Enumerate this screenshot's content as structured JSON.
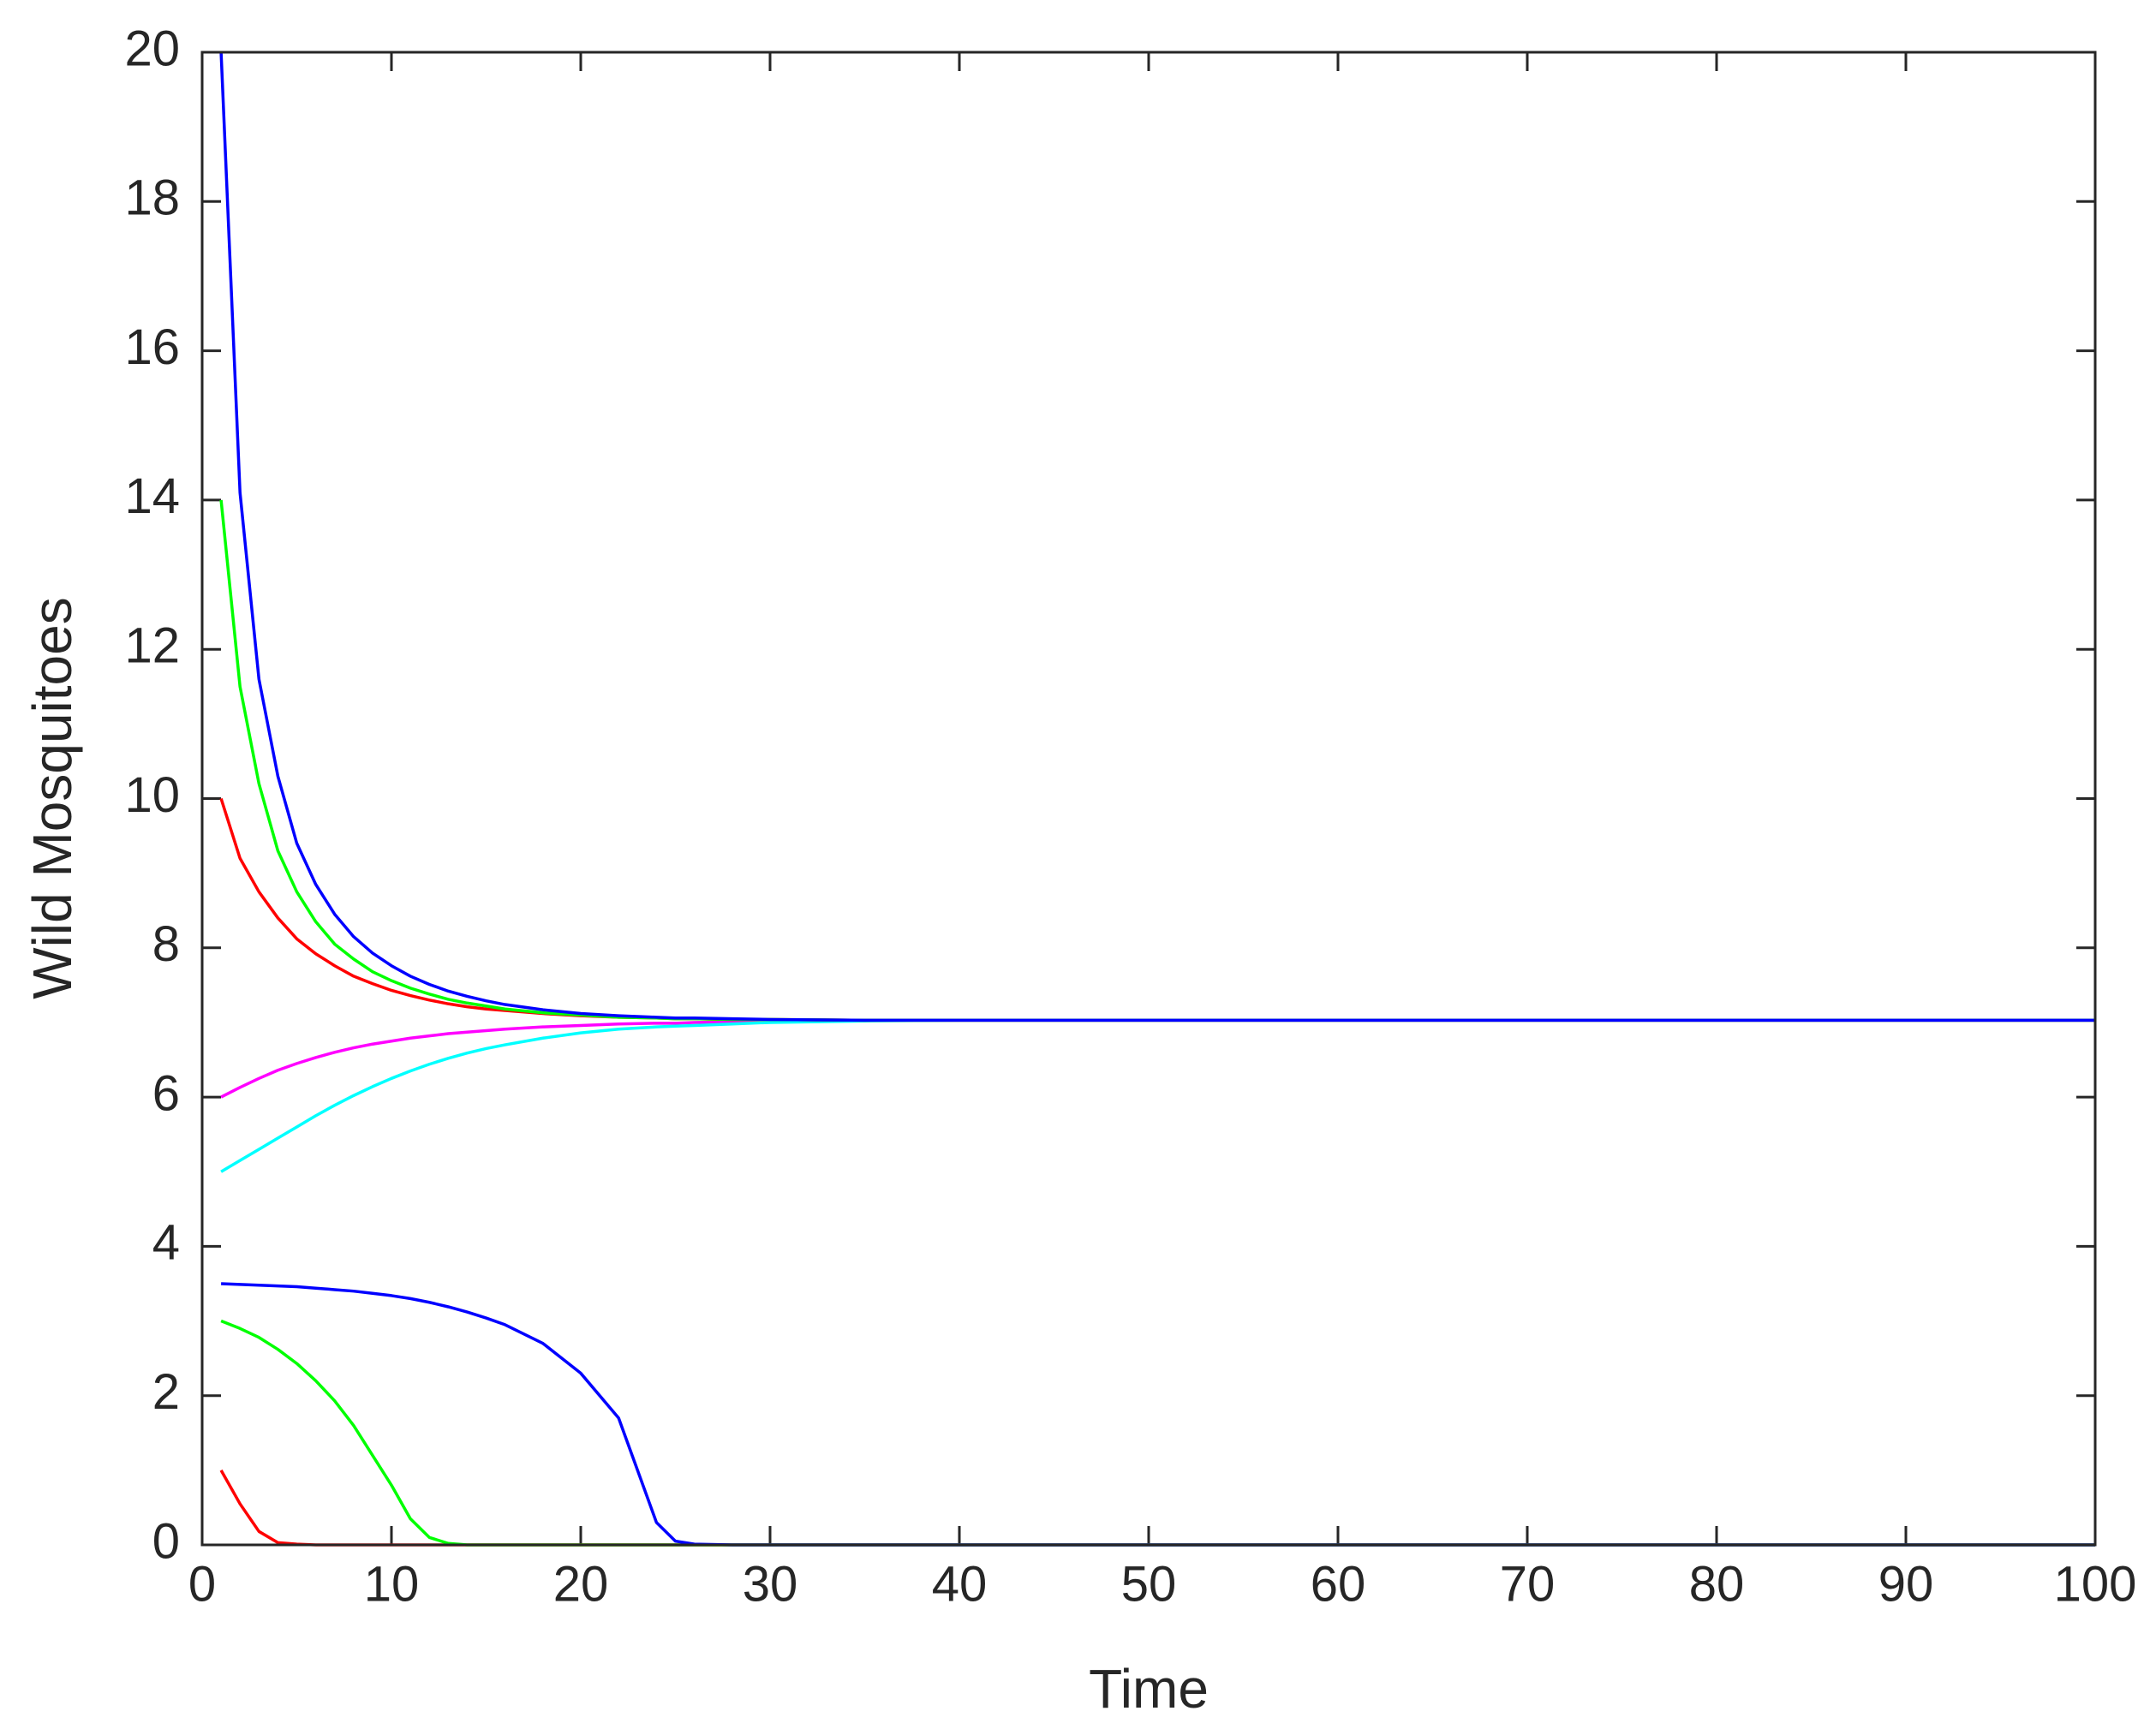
{
  "chart_data": {
    "type": "line",
    "x_label": "Time",
    "y_label": "Wild Mosquitoes",
    "xlim": [
      0,
      100
    ],
    "ylim": [
      0,
      20
    ],
    "xticks": [
      0,
      10,
      20,
      30,
      40,
      50,
      60,
      70,
      80,
      90,
      100
    ],
    "yticks": [
      0,
      2,
      4,
      6,
      8,
      10,
      12,
      14,
      16,
      18,
      20
    ],
    "grid": false,
    "x": [
      1,
      2,
      3,
      4,
      5,
      6,
      7,
      8,
      9,
      10,
      11,
      12,
      13,
      14,
      15,
      16,
      18,
      20,
      22,
      24,
      25,
      26,
      28,
      30,
      35,
      40,
      50,
      60,
      70,
      80,
      90,
      100
    ],
    "series": [
      {
        "color": "#ff00ff",
        "values": [
          6,
          6.13,
          6.25,
          6.36,
          6.45,
          6.53,
          6.6,
          6.66,
          6.71,
          6.75,
          6.79,
          6.82,
          6.85,
          6.87,
          6.89,
          6.91,
          6.94,
          6.96,
          6.98,
          6.99,
          6.99,
          7.0,
          7.01,
          7.02,
          7.03,
          7.03,
          7.03,
          7.03,
          7.03,
          7.03,
          7.03,
          7.03
        ]
      },
      {
        "color": "#00ffff",
        "values": [
          5,
          5.15,
          5.3,
          5.45,
          5.6,
          5.75,
          5.89,
          6.02,
          6.14,
          6.25,
          6.35,
          6.44,
          6.52,
          6.59,
          6.65,
          6.7,
          6.79,
          6.86,
          6.91,
          6.94,
          6.95,
          6.96,
          6.98,
          7.0,
          7.02,
          7.03,
          7.03,
          7.03,
          7.03,
          7.03,
          7.03,
          7.03
        ]
      },
      {
        "color": "#ff0000",
        "values": [
          10,
          9.2,
          8.75,
          8.4,
          8.12,
          7.92,
          7.76,
          7.62,
          7.52,
          7.43,
          7.36,
          7.3,
          7.25,
          7.21,
          7.18,
          7.16,
          7.12,
          7.09,
          7.07,
          7.06,
          7.05,
          7.05,
          7.04,
          7.04,
          7.03,
          7.03,
          7.03,
          7.03,
          7.03,
          7.03,
          7.03,
          7.03
        ]
      },
      {
        "color": "#00ff00",
        "values": [
          14,
          11.5,
          10.2,
          9.3,
          8.75,
          8.35,
          8.05,
          7.85,
          7.68,
          7.56,
          7.46,
          7.38,
          7.31,
          7.26,
          7.22,
          7.18,
          7.13,
          7.1,
          7.07,
          7.06,
          7.05,
          7.05,
          7.04,
          7.04,
          7.03,
          7.03,
          7.03,
          7.03,
          7.03,
          7.03,
          7.03,
          7.03
        ]
      },
      {
        "color": "#0000ff",
        "values": [
          20,
          14.1,
          11.6,
          10.3,
          9.4,
          8.85,
          8.45,
          8.15,
          7.93,
          7.76,
          7.62,
          7.51,
          7.42,
          7.35,
          7.29,
          7.24,
          7.17,
          7.12,
          7.09,
          7.07,
          7.06,
          7.06,
          7.05,
          7.04,
          7.03,
          7.03,
          7.03,
          7.03,
          7.03,
          7.03,
          7.03,
          7.03
        ]
      },
      {
        "color": "#ff0000",
        "values": [
          1,
          0.55,
          0.18,
          0.03,
          0.01,
          0,
          0,
          0,
          0,
          0,
          0,
          0,
          0,
          0,
          0,
          0,
          0,
          0,
          0,
          0,
          0,
          0,
          0,
          0,
          0,
          0,
          0,
          0,
          0,
          0,
          0,
          0
        ]
      },
      {
        "color": "#00ff00",
        "values": [
          3,
          2.9,
          2.78,
          2.62,
          2.43,
          2.2,
          1.93,
          1.6,
          1.2,
          0.8,
          0.35,
          0.1,
          0.02,
          0,
          0,
          0,
          0,
          0,
          0,
          0,
          0,
          0,
          0,
          0,
          0,
          0,
          0,
          0,
          0,
          0,
          0,
          0
        ]
      },
      {
        "color": "#0000ff",
        "values": [
          3.5,
          3.49,
          3.48,
          3.47,
          3.46,
          3.44,
          3.42,
          3.4,
          3.37,
          3.34,
          3.3,
          3.25,
          3.19,
          3.12,
          3.04,
          2.95,
          2.7,
          2.3,
          1.7,
          0.3,
          0.05,
          0.01,
          0,
          0,
          0,
          0,
          0,
          0,
          0,
          0,
          0,
          0
        ]
      }
    ]
  }
}
